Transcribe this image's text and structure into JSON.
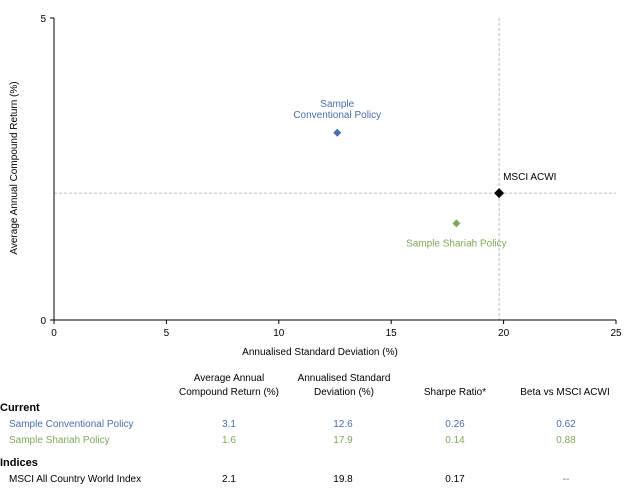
{
  "chart_data": {
    "type": "scatter",
    "xlabel": "Annualised Standard Deviation (%)",
    "ylabel": "Average Annual Compound Return (%)",
    "xlim": [
      0,
      25
    ],
    "ylim": [
      0,
      5
    ],
    "x_ticks": [
      "0",
      "5",
      "10",
      "15",
      "20",
      "25"
    ],
    "y_ticks": [
      "0",
      "5"
    ],
    "reference_lines": {
      "x": 19.8,
      "y": 2.1
    },
    "series": [
      {
        "name": "Sample Conventional Policy",
        "label_lines": [
          "Sample",
          "Conventional Policy"
        ],
        "x": 12.6,
        "y": 3.1,
        "color": "#4a6fae",
        "label_color": "#4a6fae"
      },
      {
        "name": "Sample Shariah Policy",
        "label_lines": [
          "Sample Shariah Policy"
        ],
        "x": 17.9,
        "y": 1.6,
        "color": "#7fa85a",
        "label_color": "#7fa85a"
      },
      {
        "name": "MSCI ACWI",
        "label_lines": [
          "MSCI  ACWI"
        ],
        "x": 19.8,
        "y": 2.1,
        "color": "#000000",
        "label_color": "#000000"
      }
    ]
  },
  "table": {
    "headers": [
      {
        "lines": [
          "Average Annual",
          "Compound Return (%)"
        ]
      },
      {
        "lines": [
          "Annualised Standard",
          "Deviation (%)"
        ]
      },
      {
        "lines": [
          "Sharpe Ratio*"
        ]
      },
      {
        "lines": [
          "Beta vs MSCI ACWI"
        ]
      }
    ],
    "sections": [
      {
        "title": "Current",
        "rows": [
          {
            "label": "Sample Conventional Policy",
            "color": "#4a6fae",
            "values": [
              "3.1",
              "12.6",
              "0.26",
              "0.62"
            ]
          },
          {
            "label": "Sample Shariah Policy",
            "color": "#7fa85a",
            "values": [
              "1.6",
              "17.9",
              "0.14",
              "0.88"
            ]
          }
        ]
      },
      {
        "title": "Indices",
        "rows": [
          {
            "label": "MSCI All Country World Index",
            "color": "#000000",
            "values": [
              "2.1",
              "19.8",
              "0.17",
              "--"
            ],
            "value_colors": [
              "#000000",
              "#000000",
              "#000000",
              "#4a6fae"
            ]
          }
        ]
      }
    ]
  }
}
